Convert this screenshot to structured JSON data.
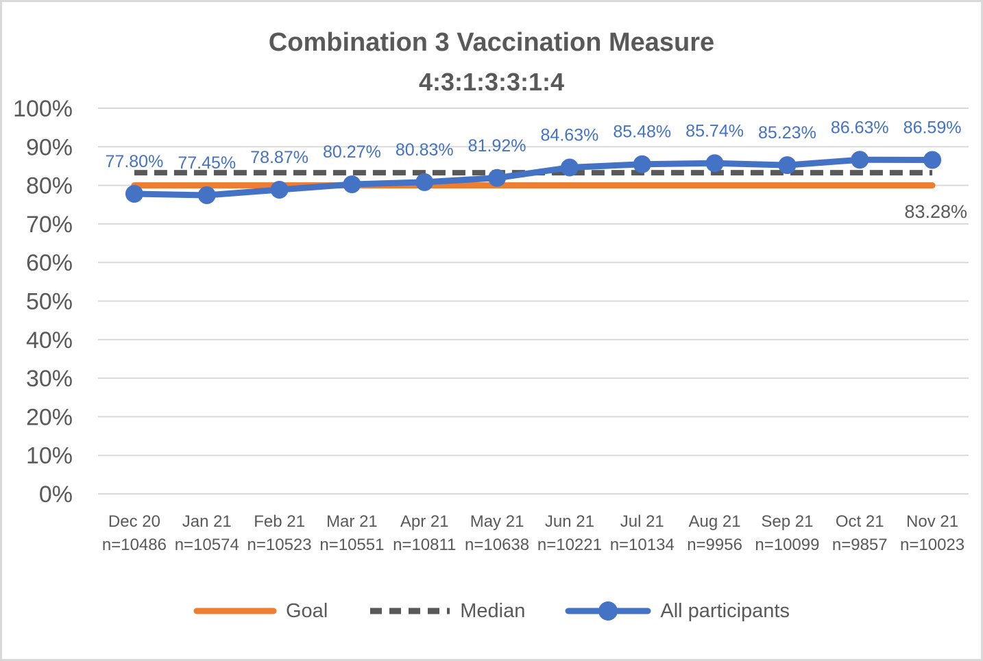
{
  "chart_data": {
    "type": "line",
    "title": "Combination 3 Vaccination Measure",
    "subtitle": "4:3:1:3:3:1:4",
    "legend_position": "bottom",
    "grid": true,
    "colors": {
      "goal": "#ED7D31",
      "median": "#595959",
      "participants": "#4472C4",
      "gridline": "#D9D9D9",
      "text": "#595959",
      "data_label": "#4472C4"
    },
    "y_axis": {
      "min": 0,
      "max": 100,
      "ticks": [
        {
          "v": 0,
          "label": "0%"
        },
        {
          "v": 10,
          "label": "10%"
        },
        {
          "v": 20,
          "label": "20%"
        },
        {
          "v": 30,
          "label": "30%"
        },
        {
          "v": 40,
          "label": "40%"
        },
        {
          "v": 50,
          "label": "50%"
        },
        {
          "v": 60,
          "label": "60%"
        },
        {
          "v": 70,
          "label": "70%"
        },
        {
          "v": 80,
          "label": "80%"
        },
        {
          "v": 90,
          "label": "90%"
        },
        {
          "v": 100,
          "label": "100%"
        }
      ]
    },
    "categories": [
      {
        "month": "Dec 20",
        "n": "n=10486"
      },
      {
        "month": "Jan 21",
        "n": "n=10574"
      },
      {
        "month": "Feb 21",
        "n": "n=10523"
      },
      {
        "month": "Mar 21",
        "n": "n=10551"
      },
      {
        "month": "Apr 21",
        "n": "n=10811"
      },
      {
        "month": "May 21",
        "n": "n=10638"
      },
      {
        "month": "Jun 21",
        "n": "n=10221"
      },
      {
        "month": "Jul 21",
        "n": "n=10134"
      },
      {
        "month": "Aug 21",
        "n": "n=9956"
      },
      {
        "month": "Sep 21",
        "n": "n=10099"
      },
      {
        "month": "Oct 21",
        "n": "n=9857"
      },
      {
        "month": "Nov 21",
        "n": "n=10023"
      }
    ],
    "series": [
      {
        "name": "Goal",
        "style": "solid-line",
        "value": 80
      },
      {
        "name": "Median",
        "style": "dashed-line",
        "value": 83.28,
        "label": "83.28%"
      },
      {
        "name": "All participants",
        "style": "line-markers",
        "values": [
          77.8,
          77.45,
          78.87,
          80.27,
          80.83,
          81.92,
          84.63,
          85.48,
          85.74,
          85.23,
          86.63,
          86.59
        ],
        "labels": [
          "77.80%",
          "77.45%",
          "78.87%",
          "80.27%",
          "80.83%",
          "81.92%",
          "84.63%",
          "85.48%",
          "85.74%",
          "85.23%",
          "86.63%",
          "86.59%"
        ]
      }
    ]
  }
}
